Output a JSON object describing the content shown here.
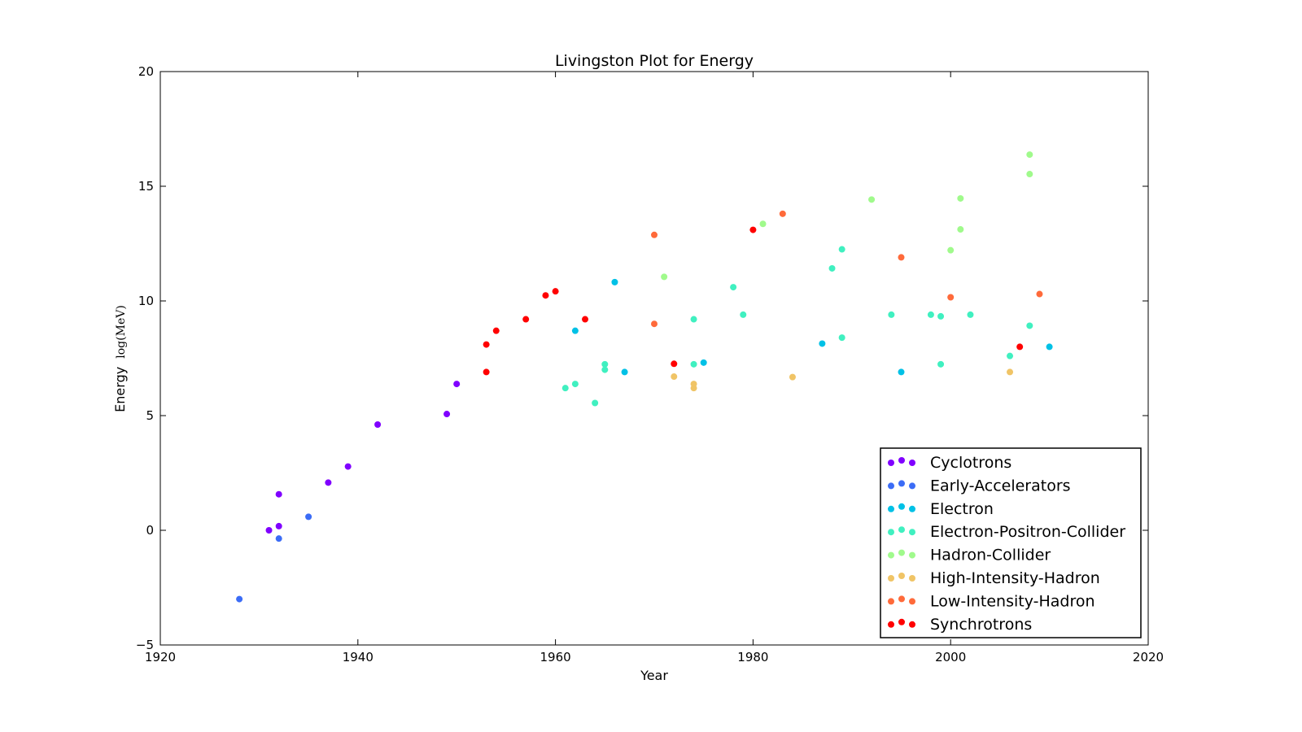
{
  "chart_data": {
    "type": "scatter",
    "title": "Livingston Plot for Energy",
    "xlabel": "Year",
    "ylabel": "Energy",
    "ylabel_unit": "log(MeV)",
    "xlim": [
      1920,
      2020
    ],
    "ylim": [
      -5,
      20
    ],
    "xticks": [
      1920,
      1940,
      1960,
      1980,
      2000,
      2020
    ],
    "yticks": [
      -5,
      0,
      5,
      10,
      15,
      20
    ],
    "grid": false,
    "legend_position": "lower-right",
    "series": [
      {
        "name": "Cyclotrons",
        "color": "#8000ff",
        "points": [
          [
            1931,
            0.0
          ],
          [
            1932,
            0.18
          ],
          [
            1932,
            1.57
          ],
          [
            1937,
            2.08
          ],
          [
            1939,
            2.78
          ],
          [
            1942,
            4.61
          ],
          [
            1949,
            5.07
          ],
          [
            1950,
            6.38
          ]
        ]
      },
      {
        "name": "Early-Accelerators",
        "color": "#3b6cf6",
        "points": [
          [
            1928,
            -3.0
          ],
          [
            1932,
            -0.36
          ],
          [
            1935,
            0.59
          ]
        ]
      },
      {
        "name": "Electron",
        "color": "#00c1e6",
        "points": [
          [
            1962,
            8.7
          ],
          [
            1966,
            10.82
          ],
          [
            1967,
            6.9
          ],
          [
            1975,
            7.31
          ],
          [
            1987,
            8.14
          ],
          [
            1995,
            6.9
          ],
          [
            2010,
            8.0
          ]
        ]
      },
      {
        "name": "Electron-Positron-Collider",
        "color": "#40f0c0",
        "points": [
          [
            1961,
            6.2
          ],
          [
            1962,
            6.38
          ],
          [
            1964,
            5.55
          ],
          [
            1965,
            7.0
          ],
          [
            1965,
            7.24
          ],
          [
            1974,
            7.24
          ],
          [
            1974,
            9.2
          ],
          [
            1978,
            10.6
          ],
          [
            1979,
            9.4
          ],
          [
            1988,
            11.42
          ],
          [
            1989,
            12.25
          ],
          [
            1989,
            8.4
          ],
          [
            1994,
            9.4
          ],
          [
            1998,
            9.4
          ],
          [
            1999,
            9.33
          ],
          [
            1999,
            7.24
          ],
          [
            2002,
            9.4
          ],
          [
            2006,
            7.6
          ],
          [
            2008,
            8.92
          ]
        ]
      },
      {
        "name": "Hadron-Collider",
        "color": "#a0fa8c",
        "points": [
          [
            1971,
            11.05
          ],
          [
            1981,
            13.36
          ],
          [
            1992,
            14.42
          ],
          [
            2000,
            12.21
          ],
          [
            2001,
            13.12
          ],
          [
            2001,
            14.47
          ],
          [
            2008,
            15.53
          ],
          [
            2008,
            16.38
          ]
        ]
      },
      {
        "name": "High-Intensity-Hadron",
        "color": "#f0c466",
        "points": [
          [
            1972,
            6.7
          ],
          [
            1974,
            6.2
          ],
          [
            1974,
            6.38
          ],
          [
            1984,
            6.68
          ],
          [
            2006,
            6.9
          ]
        ]
      },
      {
        "name": "Low-Intensity-Hadron",
        "color": "#ff6a3a",
        "points": [
          [
            1970,
            12.88
          ],
          [
            1970,
            9.0
          ],
          [
            1983,
            13.8
          ],
          [
            1995,
            11.9
          ],
          [
            2000,
            10.16
          ],
          [
            2009,
            10.3
          ]
        ]
      },
      {
        "name": "Synchrotrons",
        "color": "#ff0000",
        "points": [
          [
            1953,
            6.9
          ],
          [
            1953,
            8.1
          ],
          [
            1954,
            8.7
          ],
          [
            1957,
            9.2
          ],
          [
            1959,
            10.24
          ],
          [
            1960,
            10.42
          ],
          [
            1963,
            9.2
          ],
          [
            1972,
            7.26
          ],
          [
            1980,
            13.1
          ],
          [
            2007,
            8.0
          ]
        ]
      }
    ]
  }
}
